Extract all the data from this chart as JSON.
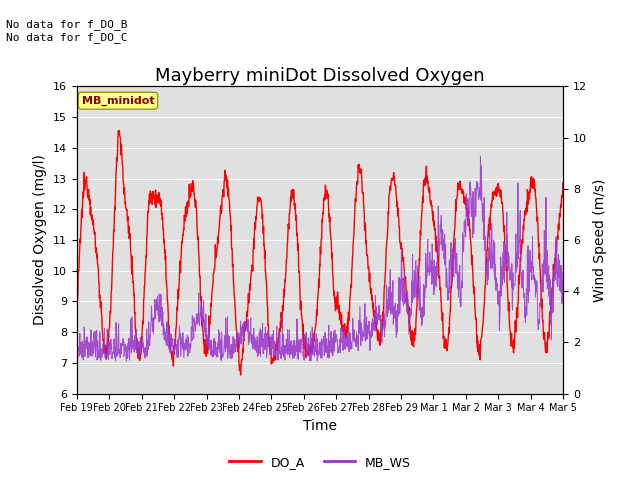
{
  "title": "Mayberry miniDot Dissolved Oxygen",
  "ylabel_left": "Dissolved Oxygen (mg/l)",
  "ylabel_right": "Wind Speed (m/s)",
  "xlabel": "Time",
  "ylim_left": [
    6.0,
    16.0
  ],
  "ylim_right": [
    0,
    12
  ],
  "yticks_left": [
    6.0,
    7.0,
    8.0,
    9.0,
    10.0,
    11.0,
    12.0,
    13.0,
    14.0,
    15.0,
    16.0
  ],
  "yticks_right": [
    0,
    2,
    4,
    6,
    8,
    10,
    12
  ],
  "legend_entries": [
    "DO_A",
    "MB_WS"
  ],
  "do_color": "red",
  "ws_color": "#9932CC",
  "annotation_text": "No data for f_DO_B\nNo data for f_DO_C",
  "box_label": "MB_minidot",
  "box_color": "#FFFF99",
  "box_border": "#999900",
  "bg_color": "#e0e0e0",
  "title_fontsize": 13,
  "label_fontsize": 10,
  "annot_fontsize": 8,
  "tick_fontsize": 8,
  "xtick_labels": [
    "Feb 19",
    "Feb 20",
    "Feb 21",
    "Feb 22",
    "Feb 23",
    "Feb 24",
    "Feb 25",
    "Feb 26",
    "Feb 27",
    "Feb 28",
    "Feb 29",
    "Mar 1",
    "Mar 2",
    "Mar 3",
    "Mar 4",
    "Mar 5"
  ]
}
